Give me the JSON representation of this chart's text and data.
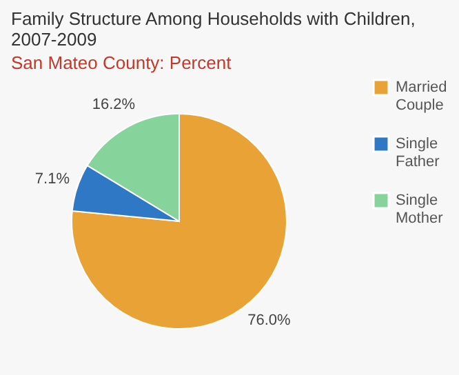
{
  "chart_data": {
    "type": "pie",
    "title": "Family Structure Among Households with Children, 2007-2009",
    "subtitle": "San Mateo County: Percent",
    "categories": [
      "Married Couple",
      "Single Father",
      "Single Mother"
    ],
    "values": [
      76.0,
      7.1,
      16.2
    ],
    "colors": [
      "#e9a236",
      "#2f78c6",
      "#86d49c"
    ],
    "data_labels": true,
    "value_labels": [
      "76.0%",
      "7.1%",
      "16.2%"
    ],
    "legend": "right"
  }
}
